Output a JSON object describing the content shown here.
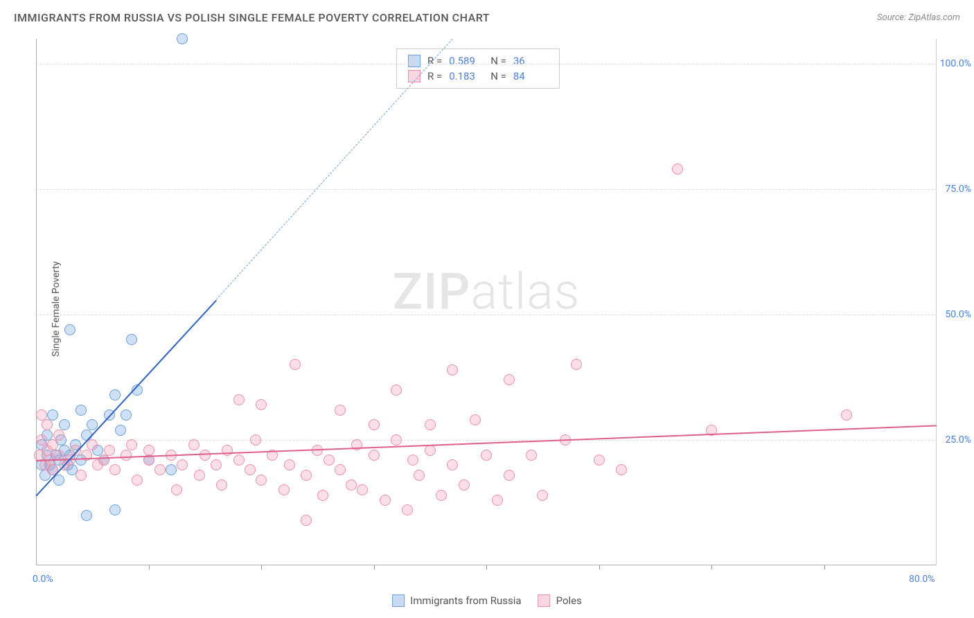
{
  "header": {
    "title": "IMMIGRANTS FROM RUSSIA VS POLISH SINGLE FEMALE POVERTY CORRELATION CHART",
    "source": "Source: ZipAtlas.com"
  },
  "chart": {
    "type": "scatter",
    "y_axis_label": "Single Female Poverty",
    "x_range": [
      0,
      80
    ],
    "y_range": [
      0,
      105
    ],
    "x_ticks": [
      0,
      10,
      20,
      30,
      40,
      50,
      60,
      70,
      80
    ],
    "x_tick_labels": {
      "0": "0.0%",
      "80": "80.0%"
    },
    "y_ticks": [
      25,
      50,
      75,
      100
    ],
    "y_tick_labels": {
      "25": "25.0%",
      "50": "50.0%",
      "75": "75.0%",
      "100": "100.0%"
    },
    "grid_color": "#dddddd",
    "background_color": "#ffffff",
    "axis_color": "#aaaaaa",
    "tick_label_color": "#4a7fd8",
    "series": [
      {
        "name": "Immigrants from Russia",
        "color_fill": "rgba(120,165,225,0.35)",
        "color_border": "#6a9fd8",
        "trend_color": "#2b5fc0",
        "R": "0.589",
        "N": "36",
        "trend": {
          "x1": 0,
          "y1": 14,
          "x2": 16,
          "y2": 53,
          "dash_to_x": 37,
          "dash_to_y": 105
        },
        "points": [
          [
            0.5,
            20
          ],
          [
            0.5,
            24
          ],
          [
            0.8,
            18
          ],
          [
            1,
            22
          ],
          [
            1,
            26
          ],
          [
            1.2,
            20
          ],
          [
            1.5,
            19
          ],
          [
            1.5,
            30
          ],
          [
            1.8,
            22
          ],
          [
            2,
            17
          ],
          [
            2,
            21
          ],
          [
            2.2,
            25
          ],
          [
            2.5,
            23
          ],
          [
            2.5,
            28
          ],
          [
            2.8,
            20
          ],
          [
            3,
            22
          ],
          [
            3,
            47
          ],
          [
            3.2,
            19
          ],
          [
            3.5,
            24
          ],
          [
            4,
            21
          ],
          [
            4,
            31
          ],
          [
            4.5,
            26
          ],
          [
            4.5,
            10
          ],
          [
            5,
            28
          ],
          [
            5.5,
            23
          ],
          [
            6,
            21
          ],
          [
            6.5,
            30
          ],
          [
            7,
            11
          ],
          [
            7,
            34
          ],
          [
            7.5,
            27
          ],
          [
            8,
            30
          ],
          [
            8.5,
            45
          ],
          [
            9,
            35
          ],
          [
            10,
            21
          ],
          [
            12,
            19
          ],
          [
            13,
            105
          ]
        ]
      },
      {
        "name": "Poles",
        "color_fill": "rgba(240,150,175,0.30)",
        "color_border": "#e890ac",
        "trend_color": "#e05f8a",
        "R": "0.183",
        "N": "84",
        "trend": {
          "x1": 0,
          "y1": 21,
          "x2": 80,
          "y2": 28
        },
        "points": [
          [
            0.3,
            22
          ],
          [
            0.5,
            25
          ],
          [
            0.5,
            30
          ],
          [
            0.8,
            20
          ],
          [
            1,
            23
          ],
          [
            1,
            28
          ],
          [
            1.2,
            21
          ],
          [
            1.5,
            19
          ],
          [
            1.5,
            24
          ],
          [
            2,
            22
          ],
          [
            2,
            26
          ],
          [
            2.5,
            20
          ],
          [
            3,
            21
          ],
          [
            3.5,
            23
          ],
          [
            4,
            18
          ],
          [
            4.5,
            22
          ],
          [
            5,
            24
          ],
          [
            5.5,
            20
          ],
          [
            6,
            21
          ],
          [
            6.5,
            23
          ],
          [
            7,
            19
          ],
          [
            8,
            22
          ],
          [
            8.5,
            24
          ],
          [
            9,
            17
          ],
          [
            10,
            21
          ],
          [
            10,
            23
          ],
          [
            11,
            19
          ],
          [
            12,
            22
          ],
          [
            12.5,
            15
          ],
          [
            13,
            20
          ],
          [
            14,
            24
          ],
          [
            14.5,
            18
          ],
          [
            15,
            22
          ],
          [
            16,
            20
          ],
          [
            16.5,
            16
          ],
          [
            17,
            23
          ],
          [
            18,
            21
          ],
          [
            18,
            33
          ],
          [
            19,
            19
          ],
          [
            19.5,
            25
          ],
          [
            20,
            17
          ],
          [
            20,
            32
          ],
          [
            21,
            22
          ],
          [
            22,
            15
          ],
          [
            22.5,
            20
          ],
          [
            23,
            40
          ],
          [
            24,
            18
          ],
          [
            24,
            9
          ],
          [
            25,
            23
          ],
          [
            25.5,
            14
          ],
          [
            26,
            21
          ],
          [
            27,
            19
          ],
          [
            27,
            31
          ],
          [
            28,
            16
          ],
          [
            28.5,
            24
          ],
          [
            29,
            15
          ],
          [
            30,
            28
          ],
          [
            30,
            22
          ],
          [
            31,
            13
          ],
          [
            32,
            25
          ],
          [
            32,
            35
          ],
          [
            33,
            11
          ],
          [
            33.5,
            21
          ],
          [
            34,
            18
          ],
          [
            35,
            23
          ],
          [
            35,
            28
          ],
          [
            36,
            14
          ],
          [
            37,
            20
          ],
          [
            37,
            39
          ],
          [
            38,
            16
          ],
          [
            39,
            29
          ],
          [
            40,
            22
          ],
          [
            41,
            13
          ],
          [
            42,
            18
          ],
          [
            42,
            37
          ],
          [
            44,
            22
          ],
          [
            45,
            14
          ],
          [
            47,
            25
          ],
          [
            48,
            40
          ],
          [
            57,
            79
          ],
          [
            60,
            27
          ],
          [
            72,
            30
          ],
          [
            50,
            21
          ],
          [
            52,
            19
          ]
        ]
      }
    ],
    "legend": {
      "stats_labels": {
        "R": "R =",
        "N": "N ="
      }
    },
    "watermark": {
      "part1": "ZIP",
      "part2": "atlas"
    }
  },
  "bottom_legend": {
    "items": [
      {
        "label": "Immigrants from Russia",
        "series": 0
      },
      {
        "label": "Poles",
        "series": 1
      }
    ]
  }
}
